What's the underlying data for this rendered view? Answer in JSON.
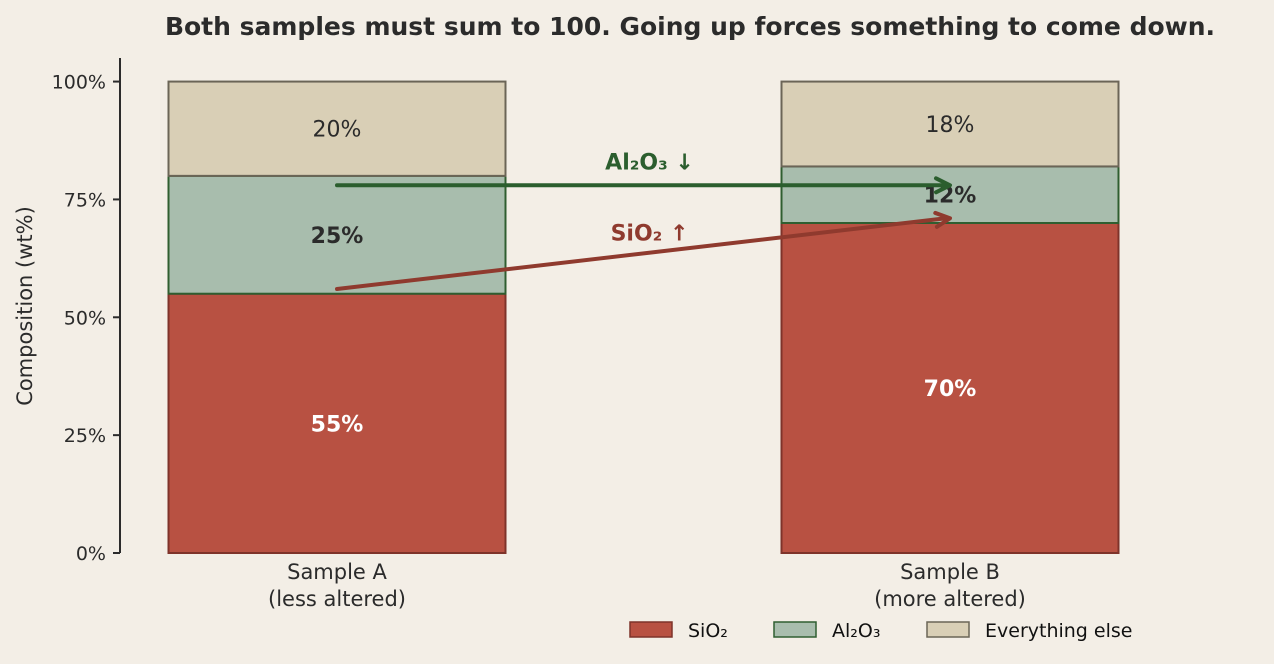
{
  "chart_data": {
    "type": "bar",
    "stacked": true,
    "title": "Both samples must sum to 100. Going up forces something to come down.",
    "ylabel": "Composition (wt%)",
    "ylim": [
      0,
      105
    ],
    "yticks": [
      {
        "value": 0,
        "label": "0%"
      },
      {
        "value": 25,
        "label": "25%"
      },
      {
        "value": 50,
        "label": "50%"
      },
      {
        "value": 75,
        "label": "75%"
      },
      {
        "value": 100,
        "label": "100%"
      }
    ],
    "categories": [
      {
        "line1": "Sample A",
        "line2": "(less altered)"
      },
      {
        "line1": "Sample B",
        "line2": "(more altered)"
      }
    ],
    "series": [
      {
        "name": "SiO₂",
        "values": [
          55,
          70
        ],
        "labels": [
          "55%",
          "70%"
        ],
        "fill": "#b85142",
        "stroke": "#7e332a",
        "label_color": "#ffffff",
        "label_bold": true
      },
      {
        "name": "Al₂O₃",
        "values": [
          25,
          12
        ],
        "labels": [
          "25%",
          "12%"
        ],
        "fill": "#a8bdad",
        "stroke": "#2f5e30",
        "label_color": "#2b2b2b",
        "label_bold": true
      },
      {
        "name": "Everything else",
        "values": [
          20,
          18
        ],
        "labels": [
          "20%",
          "18%"
        ],
        "fill": "#d9cfb6",
        "stroke": "#6b6557",
        "label_color": "#2b2b2b",
        "label_bold": false
      }
    ],
    "annotations": [
      {
        "text": "Al₂O₃ ↓",
        "color": "#2b5e2e",
        "from": [
          0,
          78
        ],
        "to": [
          1,
          78
        ],
        "label_at": [
          0.5,
          83
        ]
      },
      {
        "text": "SiO₂ ↑",
        "color": "#8f3a2e",
        "from": [
          0,
          56
        ],
        "to": [
          1,
          71
        ],
        "label_at": [
          0.5,
          68
        ]
      }
    ],
    "legend": {
      "position": "bottom-right"
    },
    "grid": false
  }
}
